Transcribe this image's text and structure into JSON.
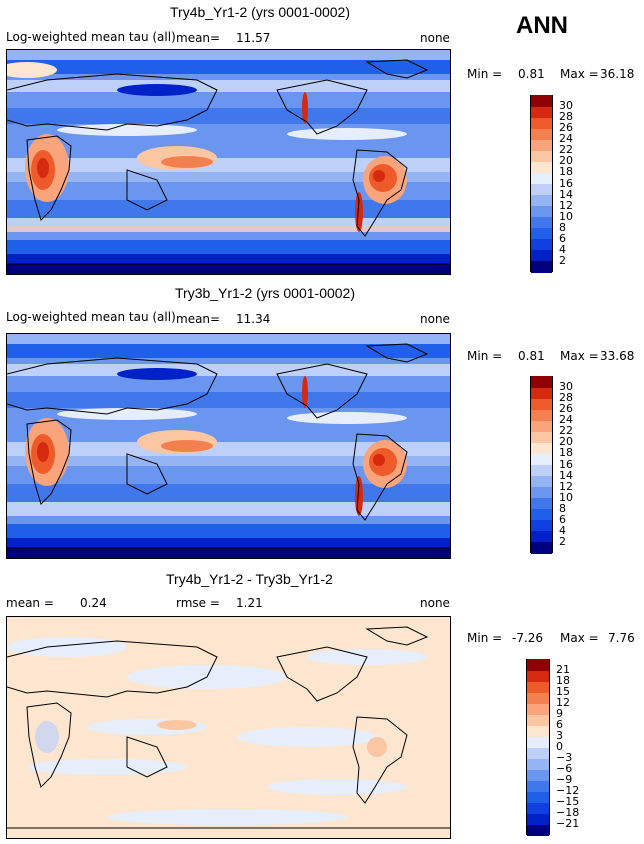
{
  "season": "ANN",
  "panels": [
    {
      "id": "p1",
      "title": "Try4b_Yr1-2 (yrs 0001-0002)",
      "variable": "Log-weighted mean tau (all)",
      "mean_label": "mean=",
      "mean_value": "11.57",
      "mask": "none",
      "min_label": "Min =",
      "min_value": "0.81",
      "max_label": "Max =",
      "max_value": "36.18",
      "colorbar_ticks": [
        "30",
        "28",
        "26",
        "24",
        "22",
        "20",
        "18",
        "16",
        "14",
        "12",
        "10",
        "8",
        "6",
        "4",
        "2"
      ],
      "palette": "positive"
    },
    {
      "id": "p2",
      "title": "Try3b_Yr1-2 (yrs 0001-0002)",
      "variable": "Log-weighted mean tau (all)",
      "mean_label": "mean=",
      "mean_value": "11.34",
      "mask": "none",
      "min_label": "Min =",
      "min_value": "0.81",
      "max_label": "Max =",
      "max_value": "33.68",
      "colorbar_ticks": [
        "30",
        "28",
        "26",
        "24",
        "22",
        "20",
        "18",
        "16",
        "14",
        "12",
        "10",
        "8",
        "6",
        "4",
        "2"
      ],
      "palette": "positive"
    },
    {
      "id": "p3",
      "title": "Try4b_Yr1-2 - Try3b_Yr1-2",
      "mean_label": "mean =",
      "mean_value": "0.24",
      "rmse_label": "rmse =",
      "rmse_value": "1.21",
      "mask": "none",
      "min_label": "Min =",
      "min_value": "-7.26",
      "max_label": "Max =",
      "max_value": "7.76",
      "colorbar_ticks": [
        "21",
        "18",
        "15",
        "12",
        "9",
        "6",
        "3",
        "0",
        "−3",
        "−6",
        "−9",
        "−12",
        "−15",
        "−18",
        "−21"
      ],
      "palette": "difference"
    }
  ],
  "colors": {
    "positive": [
      "#00007f",
      "#0020c8",
      "#1040e0",
      "#2060e8",
      "#4078ec",
      "#6a96f0",
      "#94b4f4",
      "#bed0f8",
      "#e6eefc",
      "#fde6d0",
      "#fbc6a2",
      "#f9a47a",
      "#f5804f",
      "#ef5a2a",
      "#d62a10",
      "#900000"
    ],
    "difference": [
      "#00007f",
      "#0020c8",
      "#1040e0",
      "#2060e8",
      "#4078ec",
      "#6a96f0",
      "#94b4f4",
      "#bed0f8",
      "#e6eefc",
      "#fde6d0",
      "#fbc6a2",
      "#f9a47a",
      "#f5804f",
      "#ef5a2a",
      "#d62a10",
      "#900000"
    ]
  }
}
